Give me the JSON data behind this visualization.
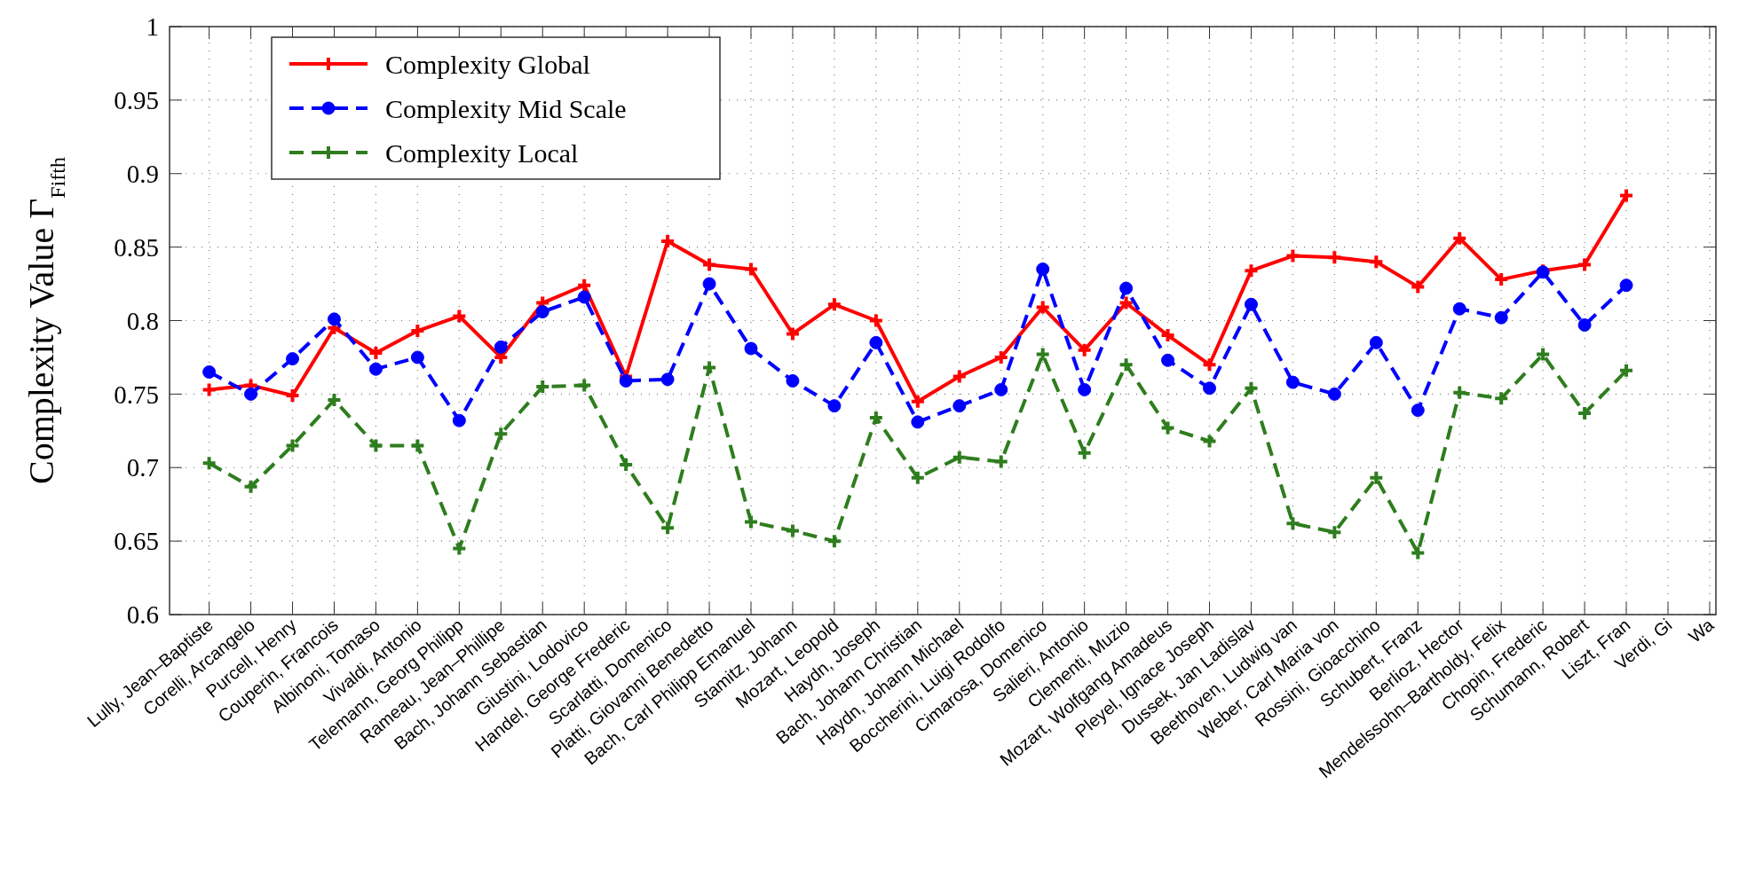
{
  "chart_data": {
    "type": "line",
    "ylabel": "Complexity Value Γ$_{Fifth}$",
    "categories": [
      "Lully, Jean–Baptiste",
      "Corelli, Arcangelo",
      "Purcell, Henry",
      "Couperin, Francois",
      "Albinoni, Tomaso",
      "Vivaldi, Antonio",
      "Telemann, Georg Philipp",
      "Rameau, Jean–Phillipe",
      "Bach, Johann Sebastian",
      "Giustini, Lodovico",
      "Handel, George Frederic",
      "Scarlatti, Domenico",
      "Platti, Giovanni Benedetto",
      "Bach, Carl Philipp Emanuel",
      "Stamitz, Johann",
      "Mozart, Leopold",
      "Haydn, Joseph",
      "Bach, Johann Christian",
      "Haydn, Johann Michael",
      "Boccherini, Luigi Rodolfo",
      "Cimarosa, Domenico",
      "Salieri, Antonio",
      "Clementi, Muzio",
      "Mozart, Wolfgang Amadeus",
      "Pleyel, Ignace Joseph",
      "Dussek, Jan Ladislav",
      "Beethoven, Ludwig van",
      "Weber, Carl Maria von",
      "Rossini, Gioacchino",
      "Schubert, Franz",
      "Berlioz, Hector",
      "Mendelssohn–Bartholdy, Felix",
      "Chopin, Frederic",
      "Schumann, Robert",
      "Liszt, Fran",
      "Verdi, Gi",
      "Wa"
    ],
    "series": [
      {
        "name": "Complexity Global",
        "color": "#ff0000",
        "marker": "cross",
        "line_style": "solid",
        "values": [
          0.753,
          0.756,
          0.749,
          0.795,
          0.778,
          0.793,
          0.803,
          0.775,
          0.812,
          0.824,
          0.762,
          0.854,
          0.838,
          0.835,
          0.791,
          0.811,
          0.8,
          0.745,
          0.762,
          0.775,
          0.809,
          0.78,
          0.812,
          0.79,
          0.77,
          0.834,
          0.844,
          0.843,
          0.84,
          0.823,
          0.856,
          0.828,
          0.834,
          0.838,
          0.885,
          null,
          null
        ]
      },
      {
        "name": "Complexity Mid Scale",
        "color": "#0000ff",
        "marker": "circle",
        "line_style": "dashed",
        "values": [
          0.765,
          0.75,
          0.774,
          0.801,
          0.767,
          0.775,
          0.732,
          0.782,
          0.806,
          0.816,
          0.759,
          0.76,
          0.825,
          0.781,
          0.759,
          0.742,
          0.785,
          0.731,
          0.742,
          0.753,
          0.835,
          0.753,
          0.822,
          0.773,
          0.754,
          0.811,
          0.758,
          0.75,
          0.785,
          0.739,
          0.808,
          0.802,
          0.833,
          0.797,
          0.824,
          null,
          null
        ]
      },
      {
        "name": "Complexity Local",
        "color": "#2e7d1e",
        "marker": "cross",
        "line_style": "dashed",
        "values": [
          0.703,
          0.687,
          0.715,
          0.746,
          0.715,
          0.715,
          0.645,
          0.723,
          0.755,
          0.756,
          0.702,
          0.659,
          0.768,
          0.663,
          0.657,
          0.65,
          0.734,
          0.693,
          0.707,
          0.704,
          0.777,
          0.71,
          0.77,
          0.727,
          0.718,
          0.754,
          0.662,
          0.656,
          0.693,
          0.642,
          0.751,
          0.747,
          0.777,
          0.737,
          0.766,
          null,
          null
        ]
      }
    ],
    "ylim": [
      0.6,
      1
    ],
    "yticks": [
      0.6,
      0.65,
      0.7,
      0.75,
      0.8,
      0.85,
      0.9,
      0.95,
      1
    ],
    "grid": true,
    "legend": "top left"
  }
}
